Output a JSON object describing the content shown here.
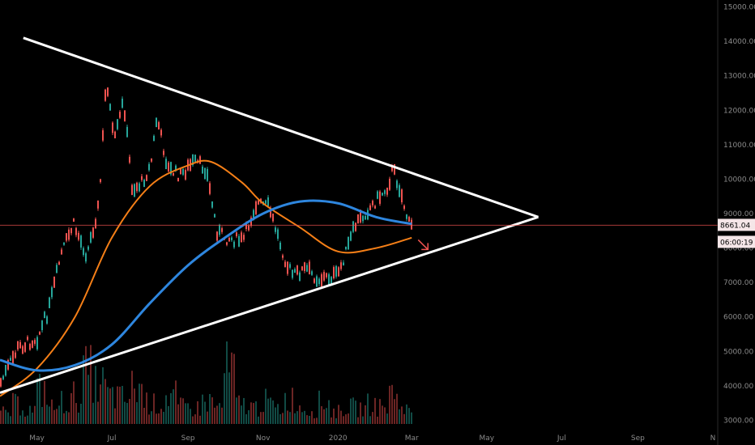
{
  "chart_data": {
    "type": "line",
    "ylim": [
      2800,
      15200
    ],
    "y_ticks": [
      "15000.00",
      "14000.00",
      "13000.00",
      "12000.00",
      "11000.00",
      "10000.00",
      "9000.00",
      "8000.00",
      "7000.00",
      "6000.00",
      "5000.00",
      "4000.00",
      "3000.00"
    ],
    "x_ticks": [
      "May",
      "Jul",
      "Sep",
      "Nov",
      "2020",
      "Mar",
      "May",
      "Jul",
      "Sep",
      "N"
    ],
    "current_price": "8661.04",
    "countdown": "06:00:19",
    "price_series": {
      "x": [
        "2019-04-01",
        "2019-04-15",
        "2019-05-01",
        "2019-05-10",
        "2019-05-20",
        "2019-05-30",
        "2019-06-10",
        "2019-06-20",
        "2019-06-26",
        "2019-07-02",
        "2019-07-10",
        "2019-07-17",
        "2019-07-25",
        "2019-08-01",
        "2019-08-06",
        "2019-08-15",
        "2019-08-25",
        "2019-09-05",
        "2019-09-15",
        "2019-09-24",
        "2019-10-01",
        "2019-10-15",
        "2019-10-26",
        "2019-11-05",
        "2019-11-20",
        "2019-11-25",
        "2019-12-05",
        "2019-12-15",
        "2019-12-31",
        "2020-01-15",
        "2020-02-01",
        "2020-02-10",
        "2020-02-14",
        "2020-02-20",
        "2020-02-27",
        "2020-03-01"
      ],
      "values": [
        4100,
        5100,
        5400,
        6200,
        7800,
        8700,
        7800,
        9300,
        13000,
        11000,
        12300,
        9700,
        9900,
        10400,
        11800,
        10300,
        10100,
        10500,
        10300,
        8500,
        8300,
        8200,
        9300,
        9200,
        7500,
        7200,
        7400,
        7100,
        7200,
        8700,
        9400,
        9800,
        10300,
        9700,
        8700,
        8600
      ]
    },
    "ma_blue": {
      "x": [
        "2019-04-01",
        "2019-05-01",
        "2019-06-01",
        "2019-07-01",
        "2019-08-01",
        "2019-09-01",
        "2019-10-01",
        "2019-11-01",
        "2019-12-01",
        "2020-01-01",
        "2020-02-01",
        "2020-03-01"
      ],
      "values": [
        4750,
        4450,
        4600,
        5200,
        6400,
        7500,
        8300,
        9000,
        9350,
        9300,
        8900,
        8700
      ]
    },
    "ma_orange": {
      "x": [
        "2019-04-01",
        "2019-05-01",
        "2019-06-01",
        "2019-07-01",
        "2019-08-01",
        "2019-09-01",
        "2019-09-20",
        "2019-10-15",
        "2019-11-01",
        "2019-12-01",
        "2020-01-01",
        "2020-02-01",
        "2020-03-01"
      ],
      "values": [
        3700,
        4500,
        6000,
        8300,
        9800,
        10400,
        10500,
        9900,
        9300,
        8600,
        7900,
        8000,
        8300
      ]
    },
    "triangle": {
      "upper": [
        [
          "2019-04-20",
          14100
        ],
        [
          "2020-06-12",
          8900
        ]
      ],
      "lower": [
        [
          "2019-04-01",
          3800
        ],
        [
          "2020-06-12",
          8900
        ]
      ]
    },
    "volume_bars": [
      0.2,
      0.35,
      0.25,
      0.6,
      0.3,
      0.4,
      0.5,
      0.9,
      0.7,
      0.5,
      0.45,
      0.65,
      0.4,
      0.35,
      0.5,
      0.3,
      0.28,
      0.4,
      0.3,
      0.95,
      0.35,
      0.3,
      0.4,
      0.28,
      0.45,
      0.3,
      0.25,
      0.38,
      0.22,
      0.3,
      0.28,
      0.35,
      0.3,
      0.55,
      0.25
    ]
  },
  "colors": {
    "background": "#000000",
    "up": "#26a69a",
    "down": "#ef5350",
    "ma_blue": "#2e86de",
    "ma_orange": "#f57f17",
    "triangle": "#ffffff",
    "price_line": "#ef5350",
    "price_tag_bg": "#f5e6e8"
  }
}
